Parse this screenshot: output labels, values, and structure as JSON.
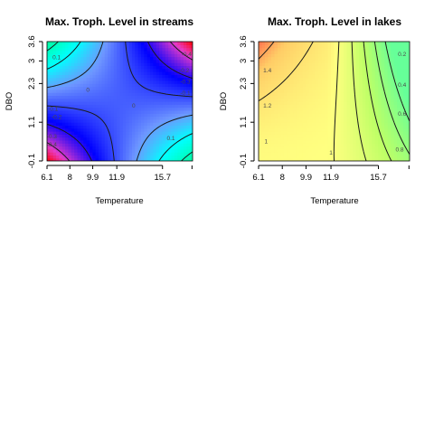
{
  "chart_data": [
    {
      "type": "heatmap",
      "title": "Max. Troph. Level  in streams",
      "xlabel": "Temperature",
      "ylabel": "DBO",
      "xlim": [
        6.1,
        18.2
      ],
      "ylim": [
        -0.1,
        3.6
      ],
      "x_ticks": [
        "6.1",
        "8",
        "9.9",
        "11.9",
        "15.7"
      ],
      "x_tick_values": [
        6.1,
        8.0,
        9.9,
        11.9,
        15.7
      ],
      "y_ticks": [
        "-0.1",
        "1.1",
        "2.3",
        "3",
        "3.6"
      ],
      "y_tick_values": [
        -0.1,
        1.1,
        2.3,
        3.0,
        3.6
      ],
      "corner_values": {
        "x0y0": -0.5,
        "x1y0": 0.15,
        "x0y1": 0.15,
        "x1y1": -0.5
      },
      "colors": {
        "high": "#00ff80",
        "mid": "#00ffff",
        "low": "#0000ff",
        "lowest": "#ff0000"
      },
      "color_range": [
        -0.5,
        0.2
      ],
      "contour_levels": [
        0.1,
        0,
        -0.1,
        -0.2,
        -0.3,
        -0.4
      ],
      "contour_labels": [
        {
          "text": "0.1",
          "x": 6.9,
          "y": 3.05
        },
        {
          "text": "0",
          "x": 9.5,
          "y": 2.05
        },
        {
          "text": "0",
          "x": 13.3,
          "y": 1.55
        },
        {
          "text": "-0.1",
          "x": 6.6,
          "y": 1.45
        },
        {
          "text": "-0.2",
          "x": 6.9,
          "y": 1.2
        },
        {
          "text": "-0.3",
          "x": 6.5,
          "y": 0.6
        },
        {
          "text": "-0.4",
          "x": 6.5,
          "y": 0.35
        },
        {
          "text": "-0.2",
          "x": 17.5,
          "y": 2.65
        },
        {
          "text": "-0.3",
          "x": 17.6,
          "y": 2.3
        },
        {
          "text": "-0.4",
          "x": 17.7,
          "y": 3.15
        },
        {
          "text": "-0.1",
          "x": 17.6,
          "y": 1.95
        },
        {
          "text": "0.1",
          "x": 16.4,
          "y": 0.55
        }
      ]
    },
    {
      "type": "heatmap",
      "title": "Max. Troph. Level in lakes",
      "xlabel": "Temperature",
      "ylabel": "DBO",
      "xlim": [
        6.1,
        18.2
      ],
      "ylim": [
        -0.1,
        3.6
      ],
      "x_ticks": [
        "6.1",
        "8",
        "9.9",
        "11.9",
        "15.7"
      ],
      "x_tick_values": [
        6.1,
        8.0,
        9.9,
        11.9,
        15.7
      ],
      "y_ticks": [
        "-0.1",
        "1.1",
        "2.3",
        "3",
        "3.6"
      ],
      "y_tick_values": [
        -0.1,
        1.1,
        2.3,
        3.0,
        3.6
      ],
      "colors": {
        "high": "#ff4040",
        "upper": "#ffcc66",
        "mid": "#ffff80",
        "lower": "#bfff66",
        "low": "#66ff99"
      },
      "color_range": [
        0.1,
        1.6
      ],
      "contour_levels": [
        1.4,
        1.2,
        1,
        0.8,
        0.6,
        0.4,
        0.2
      ],
      "contour_labels": [
        {
          "text": "1.4",
          "x": 6.8,
          "y": 2.65
        },
        {
          "text": "1.2",
          "x": 6.8,
          "y": 1.55
        },
        {
          "text": "1",
          "x": 6.7,
          "y": 0.45
        },
        {
          "text": "1",
          "x": 11.9,
          "y": 0.1
        },
        {
          "text": "0.8",
          "x": 17.4,
          "y": 0.2
        },
        {
          "text": "0.6",
          "x": 17.6,
          "y": 1.3
        },
        {
          "text": "0.4",
          "x": 17.6,
          "y": 2.2
        },
        {
          "text": "0.2",
          "x": 17.6,
          "y": 3.15
        }
      ]
    }
  ]
}
